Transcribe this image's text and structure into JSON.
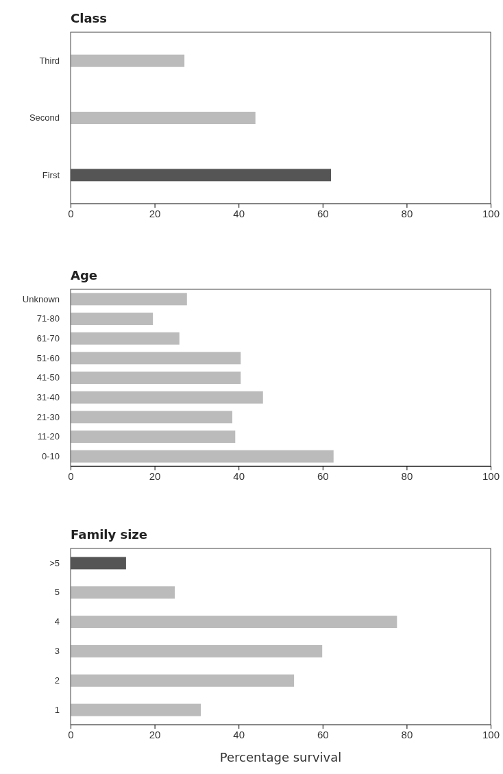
{
  "chart_data": [
    {
      "type": "bar",
      "orientation": "horizontal",
      "title": "Class",
      "categories": [
        "Third",
        "Second",
        "First"
      ],
      "values": [
        27.1,
        44.0,
        62.0
      ],
      "colors": [
        "#bbbbbb",
        "#bbbbbb",
        "#555555"
      ],
      "xlim": [
        0,
        100
      ],
      "xticks": [
        0,
        20,
        40,
        60,
        80,
        100
      ]
    },
    {
      "type": "bar",
      "orientation": "horizontal",
      "title": "Age",
      "categories": [
        "Unknown",
        "71-80",
        "61-70",
        "51-60",
        "41-50",
        "31-40",
        "21-30",
        "11-20",
        "0-10"
      ],
      "values": [
        27.7,
        19.6,
        25.9,
        40.5,
        40.5,
        45.8,
        38.5,
        39.2,
        62.6
      ],
      "colors": [
        "#bbbbbb",
        "#bbbbbb",
        "#bbbbbb",
        "#bbbbbb",
        "#bbbbbb",
        "#bbbbbb",
        "#bbbbbb",
        "#bbbbbb",
        "#bbbbbb"
      ],
      "xlim": [
        0,
        100
      ],
      "xticks": [
        0,
        20,
        40,
        60,
        80,
        100
      ]
    },
    {
      "type": "bar",
      "orientation": "horizontal",
      "title": "Family size",
      "xlabel": "Percentage survival",
      "categories": [
        ">5",
        "5",
        "4",
        "3",
        "2",
        "1"
      ],
      "values": [
        13.2,
        24.8,
        77.7,
        59.9,
        53.2,
        31.0
      ],
      "colors": [
        "#555555",
        "#bbbbbb",
        "#bbbbbb",
        "#bbbbbb",
        "#bbbbbb",
        "#bbbbbb"
      ],
      "xlim": [
        0,
        100
      ],
      "xticks": [
        0,
        20,
        40,
        60,
        80,
        100
      ]
    }
  ]
}
